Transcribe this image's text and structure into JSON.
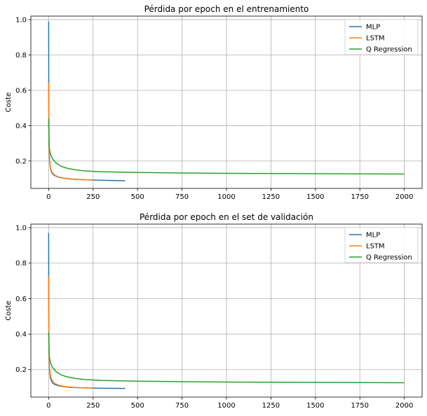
{
  "chart_data": [
    {
      "type": "line",
      "title": "Pérdida por epoch en el entrenamiento",
      "xlabel": "",
      "ylabel": "Coste",
      "xlim": [
        -100,
        2100
      ],
      "ylim": [
        0.045,
        1.02
      ],
      "xticks": [
        0,
        250,
        500,
        750,
        1000,
        1250,
        1500,
        1750,
        2000
      ],
      "yticks": [
        0.2,
        0.4,
        0.6,
        0.8,
        1.0
      ],
      "ytick_labels": [
        "0.2",
        "0.4",
        "0.6",
        "0.8",
        "1.0"
      ],
      "grid": true,
      "legend_position": "top-right",
      "series": [
        {
          "name": "MLP",
          "color": "#1f77b4",
          "x": [
            0,
            1,
            2,
            3,
            5,
            8,
            12,
            20,
            30,
            50,
            80,
            120,
            200,
            300,
            430
          ],
          "y": [
            0.99,
            0.55,
            0.35,
            0.27,
            0.21,
            0.175,
            0.15,
            0.13,
            0.12,
            0.11,
            0.103,
            0.098,
            0.094,
            0.091,
            0.088
          ]
        },
        {
          "name": "LSTM",
          "color": "#ff7f0e",
          "x": [
            0,
            1,
            2,
            3,
            5,
            8,
            12,
            20,
            30,
            50,
            80,
            120,
            180,
            250
          ],
          "y": [
            0.645,
            0.4,
            0.3,
            0.25,
            0.205,
            0.175,
            0.155,
            0.135,
            0.123,
            0.112,
            0.104,
            0.099,
            0.095,
            0.092
          ]
        },
        {
          "name": "Q Regression",
          "color": "#2ca02c",
          "x": [
            0,
            2,
            5,
            10,
            20,
            40,
            70,
            100,
            150,
            200,
            300,
            500,
            750,
            1000,
            1250,
            1500,
            1750,
            2000
          ],
          "y": [
            0.44,
            0.3,
            0.265,
            0.24,
            0.215,
            0.19,
            0.17,
            0.16,
            0.15,
            0.144,
            0.139,
            0.135,
            0.132,
            0.13,
            0.129,
            0.128,
            0.127,
            0.126
          ]
        }
      ]
    },
    {
      "type": "line",
      "title": "Pérdida por epoch en el set de validación",
      "xlabel": "",
      "ylabel": "Coste",
      "xlim": [
        -100,
        2100
      ],
      "ylim": [
        0.045,
        1.02
      ],
      "xticks": [
        0,
        250,
        500,
        750,
        1000,
        1250,
        1500,
        1750,
        2000
      ],
      "yticks": [
        0.2,
        0.4,
        0.6,
        0.8,
        1.0
      ],
      "ytick_labels": [
        "0.2",
        "0.4",
        "0.6",
        "0.8",
        "1.0"
      ],
      "grid": true,
      "legend_position": "top-right",
      "series": [
        {
          "name": "MLP",
          "color": "#1f77b4",
          "x": [
            0,
            1,
            2,
            3,
            5,
            8,
            12,
            20,
            30,
            50,
            80,
            120,
            200,
            300,
            430
          ],
          "y": [
            0.97,
            0.5,
            0.33,
            0.25,
            0.2,
            0.165,
            0.145,
            0.128,
            0.118,
            0.11,
            0.104,
            0.1,
            0.097,
            0.095,
            0.094
          ]
        },
        {
          "name": "LSTM",
          "color": "#ff7f0e",
          "x": [
            0,
            1,
            2,
            3,
            5,
            8,
            12,
            20,
            30,
            50,
            80,
            120,
            180,
            250
          ],
          "y": [
            0.725,
            0.42,
            0.31,
            0.255,
            0.21,
            0.18,
            0.158,
            0.138,
            0.125,
            0.114,
            0.106,
            0.101,
            0.098,
            0.096
          ]
        },
        {
          "name": "Q Regression",
          "color": "#2ca02c",
          "x": [
            0,
            2,
            5,
            10,
            20,
            40,
            70,
            100,
            150,
            200,
            300,
            500,
            750,
            1000,
            1250,
            1500,
            1750,
            2000
          ],
          "y": [
            0.41,
            0.3,
            0.265,
            0.24,
            0.215,
            0.19,
            0.17,
            0.16,
            0.15,
            0.144,
            0.139,
            0.135,
            0.132,
            0.13,
            0.129,
            0.128,
            0.127,
            0.126
          ]
        }
      ]
    }
  ]
}
